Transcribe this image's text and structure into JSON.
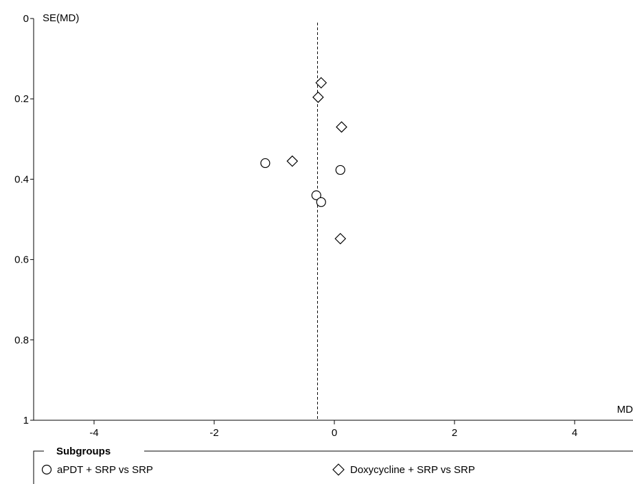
{
  "chart_data": {
    "type": "scatter",
    "title": "",
    "xlabel": "MD",
    "ylabel": "SE(MD)",
    "xlim": [
      -5,
      5
    ],
    "ylim": [
      0,
      1
    ],
    "y_reversed": true,
    "x_ticks": [
      -4,
      -2,
      0,
      2,
      4
    ],
    "x_tick_labels": [
      "-4",
      "-2",
      "0",
      "2",
      "4"
    ],
    "y_ticks": [
      0,
      0.2,
      0.4,
      0.6,
      0.8,
      1
    ],
    "y_tick_labels": [
      "0",
      "0.2",
      "0.4",
      "0.6",
      "0.8",
      "1"
    ],
    "reference_line": {
      "x": -0.28,
      "style": "dashed"
    },
    "grid": false,
    "legend": {
      "title": "Subgroups",
      "placement": "bottom",
      "entries": [
        {
          "label": "aPDT + SRP vs SRP",
          "marker": "circle"
        },
        {
          "label": "Doxycycline + SRP vs SRP",
          "marker": "diamond"
        }
      ]
    },
    "series": [
      {
        "name": "aPDT + SRP vs SRP",
        "marker": "circle",
        "points": [
          {
            "x": -1.15,
            "y": 0.36
          },
          {
            "x": 0.1,
            "y": 0.377
          },
          {
            "x": -0.3,
            "y": 0.44
          },
          {
            "x": -0.22,
            "y": 0.457
          }
        ]
      },
      {
        "name": "Doxycycline + SRP vs SRP",
        "marker": "diamond",
        "points": [
          {
            "x": -0.22,
            "y": 0.16
          },
          {
            "x": -0.27,
            "y": 0.196
          },
          {
            "x": 0.12,
            "y": 0.27
          },
          {
            "x": -0.7,
            "y": 0.355
          },
          {
            "x": 0.1,
            "y": 0.548
          }
        ]
      }
    ]
  }
}
